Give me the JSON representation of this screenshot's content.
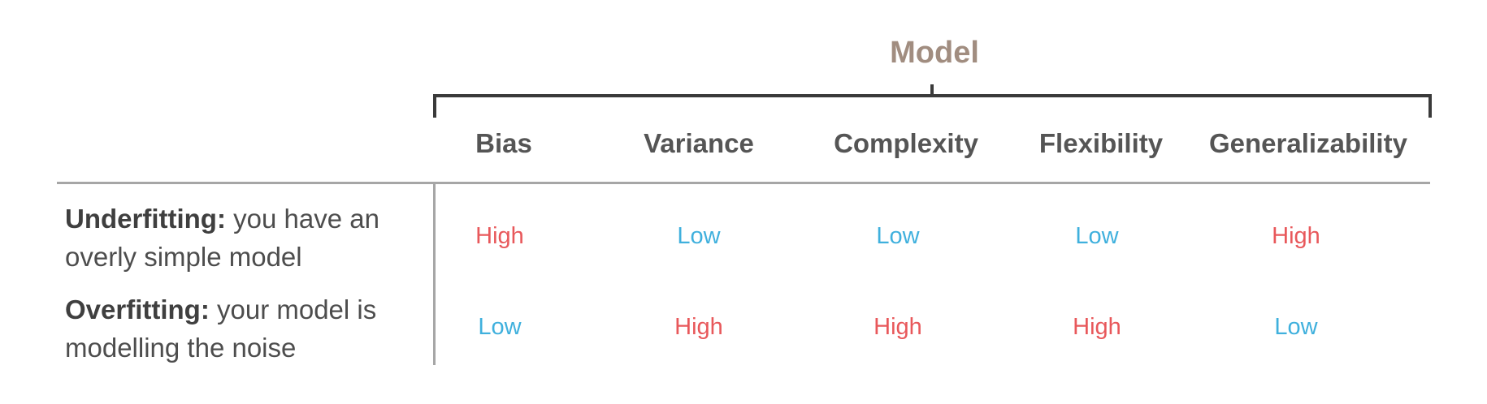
{
  "header": {
    "title": "Model",
    "columns": [
      "Bias",
      "Variance",
      "Complexity",
      "Flexibility",
      "Generalizability"
    ]
  },
  "rows": [
    {
      "name_bold": "Underfitting:",
      "line1_rest": "you have an",
      "line2": "overly simple model",
      "values": [
        "High",
        "Low",
        "Low",
        "Low",
        "High"
      ]
    },
    {
      "name_bold": "Overfitting:",
      "line1_rest": "your model is",
      "line2": "modelling the noise",
      "values": [
        "Low",
        "High",
        "High",
        "High",
        "Low"
      ]
    }
  ],
  "colors": {
    "high": "#e8585b",
    "low": "#3fb0dd",
    "title": "#a18d80"
  }
}
